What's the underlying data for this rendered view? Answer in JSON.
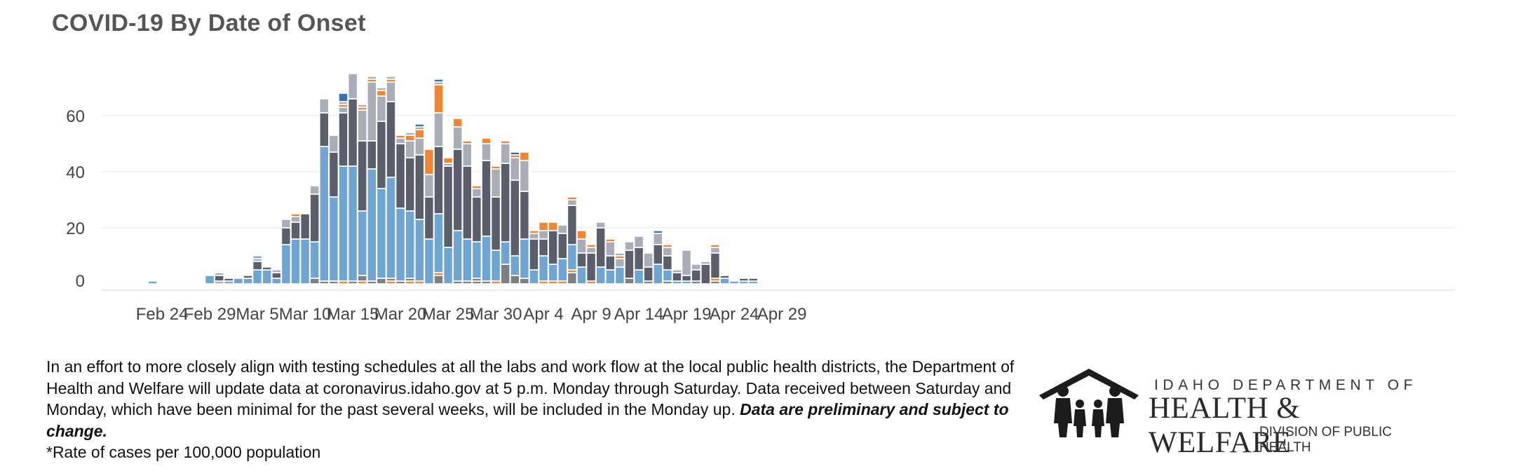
{
  "title": "COVID-19 By Date of Onset",
  "note": {
    "text": "In an effort to more closely align with testing schedules at all the labs and work flow at the local public health districts, the Department of Health and Welfare will update data at coronavirus.idaho.gov at 5 p.m. Monday through Saturday. Data received between Saturday and Monday, which have been minimal for the past several weeks, will be included in the Monday up. ",
    "emphasis": "Data are preliminary and subject to change.",
    "footnote": "*Rate of cases per 100,000 population"
  },
  "logo": {
    "line1": "IDAHO DEPARTMENT OF",
    "line2": "HEALTH & WELFARE",
    "line3": "DIVISION OF PUBLIC HEALTH"
  },
  "chart_data": {
    "type": "bar",
    "stacked": true,
    "x_tick_labels": [
      "Feb 24",
      "Feb 29",
      "Mar 5",
      "Mar 10",
      "Mar 15",
      "Mar 20",
      "Mar 25",
      "Mar 30",
      "Apr 4",
      "Apr 9",
      "Apr 14",
      "Apr 19",
      "Apr 24",
      "Apr 29"
    ],
    "y_ticks": [
      0,
      20,
      40,
      60
    ],
    "ylim": [
      -3,
      76
    ],
    "grid": "horizontal",
    "legend": "none",
    "colors": {
      "light_blue": "#6fa5d2",
      "dark_gray": "#5b5f6b",
      "light_gray": "#a9adb7",
      "orange": "#ee8733",
      "dark_blue": "#3a72a8",
      "mid_gray": "#7d7f83",
      "outline": "#ffffff"
    },
    "categories": [
      "Feb 23",
      "Feb 24",
      "Feb 25",
      "Feb 26",
      "Feb 27",
      "Feb 28",
      "Feb 29",
      "Mar 1",
      "Mar 2",
      "Mar 3",
      "Mar 4",
      "Mar 5",
      "Mar 6",
      "Mar 7",
      "Mar 8",
      "Mar 9",
      "Mar 10",
      "Mar 11",
      "Mar 12",
      "Mar 13",
      "Mar 14",
      "Mar 15",
      "Mar 16",
      "Mar 17",
      "Mar 18",
      "Mar 19",
      "Mar 20",
      "Mar 21",
      "Mar 22",
      "Mar 23",
      "Mar 24",
      "Mar 25",
      "Mar 26",
      "Mar 27",
      "Mar 28",
      "Mar 29",
      "Mar 30",
      "Mar 31",
      "Apr 1",
      "Apr 2",
      "Apr 3",
      "Apr 4",
      "Apr 5",
      "Apr 6",
      "Apr 7",
      "Apr 8",
      "Apr 9",
      "Apr 10",
      "Apr 11",
      "Apr 12",
      "Apr 13",
      "Apr 14",
      "Apr 15",
      "Apr 16",
      "Apr 17",
      "Apr 18",
      "Apr 19",
      "Apr 20",
      "Apr 21",
      "Apr 22",
      "Apr 23",
      "Apr 24",
      "Apr 25",
      "Apr 26",
      "Apr 27",
      "Apr 28"
    ],
    "bars": [
      [
        [
          1,
          "light_blue"
        ]
      ],
      [],
      [],
      [],
      [],
      [],
      [
        [
          3,
          "light_blue"
        ]
      ],
      [
        [
          1,
          "light_gray"
        ],
        [
          2,
          "dark_gray"
        ],
        [
          1,
          "light_gray"
        ]
      ],
      [
        [
          1,
          "light_blue"
        ],
        [
          1,
          "dark_gray"
        ]
      ],
      [
        [
          2,
          "light_blue"
        ]
      ],
      [
        [
          2,
          "light_blue"
        ],
        [
          1,
          "dark_gray"
        ]
      ],
      [
        [
          5,
          "light_blue"
        ],
        [
          3,
          "dark_gray"
        ],
        [
          1,
          "light_gray"
        ],
        [
          1,
          "light_blue"
        ]
      ],
      [
        [
          5,
          "light_blue"
        ],
        [
          1,
          "dark_gray"
        ]
      ],
      [
        [
          2,
          "light_blue"
        ],
        [
          2,
          "dark_gray"
        ],
        [
          1,
          "light_gray"
        ]
      ],
      [
        [
          14,
          "light_blue"
        ],
        [
          6,
          "dark_gray"
        ],
        [
          3,
          "light_gray"
        ]
      ],
      [
        [
          16,
          "light_blue"
        ],
        [
          6,
          "dark_gray"
        ],
        [
          2,
          "light_gray"
        ],
        [
          1,
          "orange"
        ]
      ],
      [
        [
          16,
          "light_blue"
        ],
        [
          9,
          "dark_gray"
        ]
      ],
      [
        [
          2,
          "mid_gray"
        ],
        [
          13,
          "light_blue"
        ],
        [
          17,
          "dark_gray"
        ],
        [
          3,
          "light_gray"
        ]
      ],
      [
        [
          1,
          "mid_gray"
        ],
        [
          48,
          "light_blue"
        ],
        [
          12,
          "dark_gray"
        ],
        [
          5,
          "light_gray"
        ]
      ],
      [
        [
          1,
          "mid_gray"
        ],
        [
          30,
          "light_blue"
        ],
        [
          16,
          "dark_gray"
        ],
        [
          6,
          "light_gray"
        ]
      ],
      [
        [
          1,
          "orange"
        ],
        [
          41,
          "light_blue"
        ],
        [
          19,
          "dark_gray"
        ],
        [
          2,
          "light_gray"
        ],
        [
          1,
          "orange"
        ],
        [
          1,
          "light_gray"
        ],
        [
          3,
          "dark_blue"
        ]
      ],
      [
        [
          1,
          "mid_gray"
        ],
        [
          41,
          "light_blue"
        ],
        [
          24,
          "dark_gray"
        ],
        [
          9,
          "light_gray"
        ]
      ],
      [
        [
          1,
          "orange"
        ],
        [
          2,
          "mid_gray"
        ],
        [
          23,
          "light_blue"
        ],
        [
          25,
          "dark_gray"
        ],
        [
          11,
          "light_gray"
        ],
        [
          1,
          "orange"
        ],
        [
          1,
          "light_gray"
        ]
      ],
      [
        [
          1,
          "mid_gray"
        ],
        [
          40,
          "light_blue"
        ],
        [
          10,
          "dark_gray"
        ],
        [
          21,
          "light_gray"
        ],
        [
          1,
          "orange"
        ],
        [
          1,
          "light_gray"
        ]
      ],
      [
        [
          2,
          "mid_gray"
        ],
        [
          32,
          "light_blue"
        ],
        [
          24,
          "dark_gray"
        ],
        [
          9,
          "light_gray"
        ],
        [
          2,
          "orange"
        ],
        [
          1,
          "light_gray"
        ]
      ],
      [
        [
          1,
          "orange"
        ],
        [
          1,
          "mid_gray"
        ],
        [
          36,
          "light_blue"
        ],
        [
          27,
          "dark_gray"
        ],
        [
          7,
          "light_gray"
        ],
        [
          1,
          "orange"
        ],
        [
          1,
          "light_gray"
        ]
      ],
      [
        [
          1,
          "mid_gray"
        ],
        [
          26,
          "light_blue"
        ],
        [
          23,
          "dark_gray"
        ],
        [
          2,
          "light_gray"
        ],
        [
          1,
          "orange"
        ]
      ],
      [
        [
          1,
          "orange"
        ],
        [
          1,
          "mid_gray"
        ],
        [
          24,
          "light_blue"
        ],
        [
          19,
          "dark_gray"
        ],
        [
          6,
          "light_gray"
        ],
        [
          2,
          "orange"
        ],
        [
          1,
          "light_gray"
        ]
      ],
      [
        [
          1,
          "orange"
        ],
        [
          22,
          "light_blue"
        ],
        [
          23,
          "dark_gray"
        ],
        [
          6,
          "light_gray"
        ],
        [
          3,
          "orange"
        ],
        [
          1,
          "light_gray"
        ],
        [
          1,
          "dark_blue"
        ]
      ],
      [
        [
          16,
          "light_blue"
        ],
        [
          15,
          "dark_gray"
        ],
        [
          8,
          "light_gray"
        ],
        [
          9,
          "orange"
        ]
      ],
      [
        [
          3,
          "mid_gray"
        ],
        [
          1,
          "orange"
        ],
        [
          21,
          "light_blue"
        ],
        [
          24,
          "dark_gray"
        ],
        [
          12,
          "light_gray"
        ],
        [
          10,
          "orange"
        ],
        [
          1,
          "light_gray"
        ],
        [
          1,
          "dark_blue"
        ]
      ],
      [
        [
          13,
          "light_blue"
        ],
        [
          29,
          "dark_gray"
        ],
        [
          1,
          "light_gray"
        ],
        [
          2,
          "orange"
        ]
      ],
      [
        [
          1,
          "mid_gray"
        ],
        [
          18,
          "light_blue"
        ],
        [
          29,
          "dark_gray"
        ],
        [
          8,
          "light_gray"
        ],
        [
          3,
          "orange"
        ]
      ],
      [
        [
          1,
          "mid_gray"
        ],
        [
          15,
          "light_blue"
        ],
        [
          26,
          "dark_gray"
        ],
        [
          8,
          "light_gray"
        ],
        [
          1,
          "orange"
        ]
      ],
      [
        [
          1,
          "mid_gray"
        ],
        [
          1,
          "mid_gray"
        ],
        [
          13,
          "light_blue"
        ],
        [
          16,
          "dark_gray"
        ],
        [
          3,
          "light_gray"
        ],
        [
          1,
          "orange"
        ]
      ],
      [
        [
          1,
          "mid_gray"
        ],
        [
          16,
          "light_blue"
        ],
        [
          27,
          "dark_gray"
        ],
        [
          6,
          "light_gray"
        ],
        [
          2,
          "orange"
        ]
      ],
      [
        [
          1,
          "orange"
        ],
        [
          11,
          "light_blue"
        ],
        [
          19,
          "dark_gray"
        ],
        [
          10,
          "light_gray"
        ],
        [
          1,
          "orange"
        ]
      ],
      [
        [
          7,
          "mid_gray"
        ],
        [
          8,
          "light_blue"
        ],
        [
          28,
          "dark_gray"
        ],
        [
          7,
          "light_gray"
        ],
        [
          1,
          "orange"
        ]
      ],
      [
        [
          3,
          "mid_gray"
        ],
        [
          7,
          "light_blue"
        ],
        [
          27,
          "dark_gray"
        ],
        [
          8,
          "light_gray"
        ],
        [
          1,
          "orange"
        ],
        [
          1,
          "dark_blue"
        ]
      ],
      [
        [
          2,
          "mid_gray"
        ],
        [
          14,
          "light_blue"
        ],
        [
          17,
          "dark_gray"
        ],
        [
          11,
          "light_gray"
        ],
        [
          3,
          "orange"
        ]
      ],
      [
        [
          5,
          "light_blue"
        ],
        [
          11,
          "dark_gray"
        ],
        [
          2,
          "light_gray"
        ],
        [
          1,
          "orange"
        ]
      ],
      [
        [
          1,
          "orange"
        ],
        [
          9,
          "light_blue"
        ],
        [
          6,
          "dark_gray"
        ],
        [
          3,
          "light_gray"
        ],
        [
          3,
          "orange"
        ]
      ],
      [
        [
          1,
          "orange"
        ],
        [
          6,
          "light_blue"
        ],
        [
          12,
          "dark_gray"
        ],
        [
          3,
          "orange"
        ]
      ],
      [
        [
          1,
          "orange"
        ],
        [
          8,
          "light_blue"
        ],
        [
          9,
          "dark_gray"
        ],
        [
          3,
          "light_gray"
        ]
      ],
      [
        [
          4,
          "mid_gray"
        ],
        [
          1,
          "orange"
        ],
        [
          9,
          "light_blue"
        ],
        [
          14,
          "dark_gray"
        ],
        [
          2,
          "light_gray"
        ],
        [
          1,
          "orange"
        ]
      ],
      [
        [
          6,
          "light_blue"
        ],
        [
          5,
          "dark_gray"
        ],
        [
          5,
          "light_gray"
        ],
        [
          3,
          "orange"
        ]
      ],
      [
        [
          1,
          "orange"
        ],
        [
          10,
          "dark_gray"
        ],
        [
          2,
          "light_gray"
        ],
        [
          1,
          "orange"
        ]
      ],
      [
        [
          6,
          "light_blue"
        ],
        [
          14,
          "dark_gray"
        ],
        [
          2,
          "light_gray"
        ]
      ],
      [
        [
          5,
          "light_blue"
        ],
        [
          5,
          "dark_gray"
        ],
        [
          5,
          "light_gray"
        ],
        [
          1,
          "orange"
        ]
      ],
      [
        [
          6,
          "light_blue"
        ],
        [
          3,
          "light_gray"
        ],
        [
          1,
          "orange"
        ],
        [
          1,
          "light_gray"
        ]
      ],
      [
        [
          2,
          "mid_gray"
        ],
        [
          10,
          "dark_gray"
        ],
        [
          3,
          "light_gray"
        ]
      ],
      [
        [
          5,
          "light_blue"
        ],
        [
          8,
          "dark_gray"
        ],
        [
          4,
          "light_gray"
        ]
      ],
      [
        [
          1,
          "mid_gray"
        ],
        [
          5,
          "dark_gray"
        ],
        [
          5,
          "light_gray"
        ]
      ],
      [
        [
          7,
          "light_blue"
        ],
        [
          7,
          "dark_gray"
        ],
        [
          4,
          "light_gray"
        ],
        [
          1,
          "dark_blue"
        ]
      ],
      [
        [
          1,
          "mid_gray"
        ],
        [
          4,
          "light_blue"
        ],
        [
          5,
          "dark_gray"
        ],
        [
          3,
          "light_gray"
        ],
        [
          1,
          "orange"
        ]
      ],
      [
        [
          1,
          "light_blue"
        ],
        [
          3,
          "dark_gray"
        ],
        [
          1,
          "light_gray"
        ]
      ],
      [
        [
          1,
          "light_blue"
        ],
        [
          2,
          "dark_gray"
        ],
        [
          9,
          "light_gray"
        ]
      ],
      [
        [
          1,
          "mid_gray"
        ],
        [
          4,
          "dark_gray"
        ],
        [
          2,
          "light_gray"
        ]
      ],
      [
        [
          7,
          "dark_gray"
        ],
        [
          1,
          "light_gray"
        ]
      ],
      [
        [
          1,
          "mid_gray"
        ],
        [
          1,
          "orange"
        ],
        [
          9,
          "dark_gray"
        ],
        [
          2,
          "light_gray"
        ],
        [
          1,
          "orange"
        ]
      ],
      [
        [
          2,
          "light_blue"
        ],
        [
          1,
          "dark_gray"
        ]
      ],
      [
        [
          1,
          "light_blue"
        ]
      ],
      [
        [
          1,
          "light_blue"
        ],
        [
          1,
          "dark_gray"
        ]
      ],
      [
        [
          1,
          "light_blue"
        ],
        [
          1,
          "dark_gray"
        ]
      ],
      []
    ]
  }
}
